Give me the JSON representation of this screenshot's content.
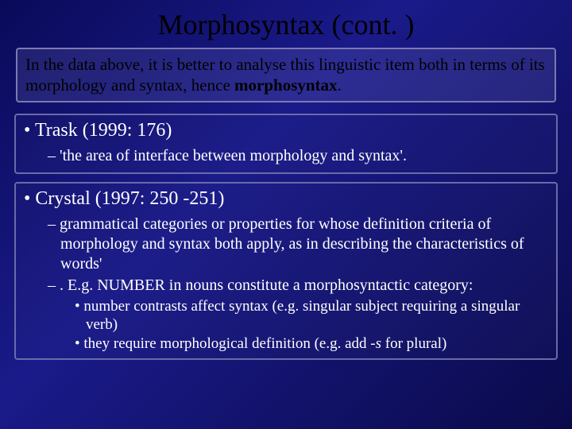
{
  "slide": {
    "title": "Morphosyntax (cont. )",
    "intro_prefix": "In the data above, it is better to analyse this linguistic item both in terms of its morphology and syntax, hence ",
    "intro_bold": "morphosyntax",
    "intro_suffix": ".",
    "trask": {
      "heading": "Trask (1999: 176)",
      "quote": "'the area of interface between morphology and syntax'."
    },
    "crystal": {
      "heading": "Crystal (1997: 250 -251)",
      "def1": "grammatical categories or properties for whose definition criteria of morphology and syntax both apply, as in describing the characteristics of words'",
      "def2": ". E.g. NUMBER in nouns constitute a morphosyntactic category:",
      "sub1_prefix": "number contrasts affect syntax (e.g. singular subject requiring a singular verb)",
      "sub2_prefix": "they require morphological definition (e.g. add ",
      "sub2_italic": "-s",
      "sub2_suffix": " for plural)"
    }
  },
  "styling": {
    "background_gradient": [
      "#0a0a5a",
      "#1a1a8a",
      "#0a0a4a"
    ],
    "title_color": "#000000",
    "title_fontsize": 36,
    "intro_text_color": "#000000",
    "intro_fontsize": 21,
    "body_text_color": "#ffffff",
    "bullet_fontsize": 24,
    "sub_fontsize": 20,
    "subsub_fontsize": 19,
    "box_border_color": "#6a6aa8",
    "font_family": "Times New Roman"
  }
}
